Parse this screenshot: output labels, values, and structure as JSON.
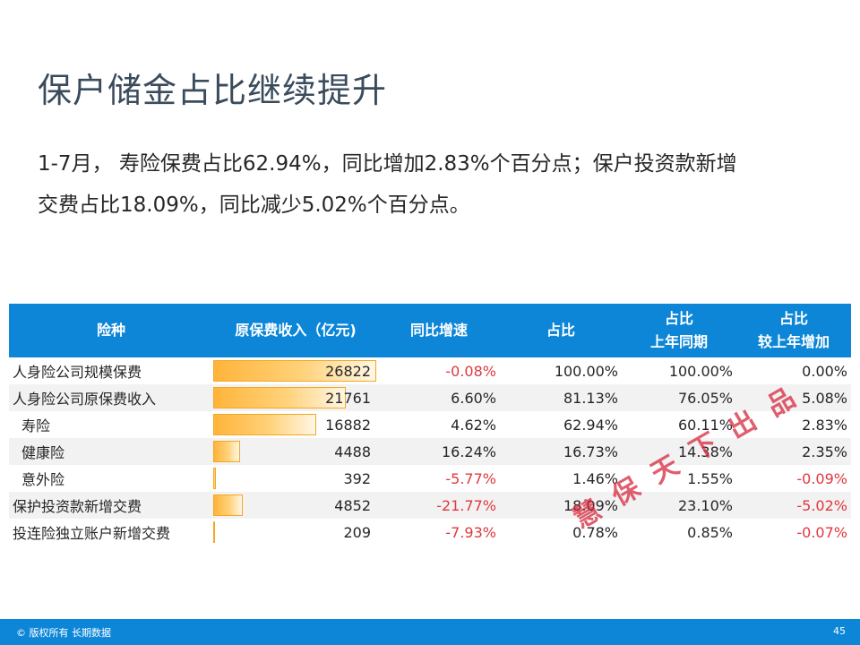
{
  "title": "保户储金占比继续提升",
  "subtitle": {
    "line1": "1-7月， 寿险保费占比62.94%，同比增加2.83%个百分点；保户投资款新增",
    "line2": "交费占比18.09%，同比减少5.02%个百分点。"
  },
  "table": {
    "headers": {
      "type": "险种",
      "income": "原保费收入（亿元)",
      "yoy": "同比增速",
      "share": "占比",
      "share_last_l1": "占比",
      "share_last_l2": "上年同期",
      "share_diff_l1": "占比",
      "share_diff_l2": "较上年增加"
    },
    "rows": [
      {
        "name": "人身险公司规模保费",
        "income": "26822",
        "income_value": 26822,
        "yoy": "-0.08%",
        "share": "100.00%",
        "share_last": "100.00%",
        "share_diff": "0.00%"
      },
      {
        "name": "人身险公司原保费收入",
        "income": "21761",
        "income_value": 21761,
        "yoy": "6.60%",
        "share": "81.13%",
        "share_last": "76.05%",
        "share_diff": "5.08%"
      },
      {
        "name": "寿险",
        "income": "16882",
        "income_value": 16882,
        "yoy": "4.62%",
        "share": "62.94%",
        "share_last": "60.11%",
        "share_diff": "2.83%"
      },
      {
        "name": "健康险",
        "income": "4488",
        "income_value": 4488,
        "yoy": "16.24%",
        "share": "16.73%",
        "share_last": "14.38%",
        "share_diff": "2.35%"
      },
      {
        "name": "意外险",
        "income": "392",
        "income_value": 392,
        "yoy": "-5.77%",
        "share": "1.46%",
        "share_last": "1.55%",
        "share_diff": "-0.09%"
      },
      {
        "name": "保护投资款新增交费",
        "income": "4852",
        "income_value": 4852,
        "yoy": "-21.77%",
        "share": "18.09%",
        "share_last": "23.10%",
        "share_diff": "-5.02%"
      },
      {
        "name": "投连险独立账户新增交费",
        "income": "209",
        "income_value": 209,
        "yoy": "-7.93%",
        "share": "0.78%",
        "share_last": "0.85%",
        "share_diff": "-0.07%"
      }
    ]
  },
  "watermark": "慧保天下出品",
  "footer": {
    "copyright": "© 版权所有 长期数据",
    "page": "45"
  },
  "colors": {
    "header_bg": "#0d86d8",
    "negative": "#e0383e",
    "bar": "#ffb43a",
    "title": "#3a4b5c"
  }
}
